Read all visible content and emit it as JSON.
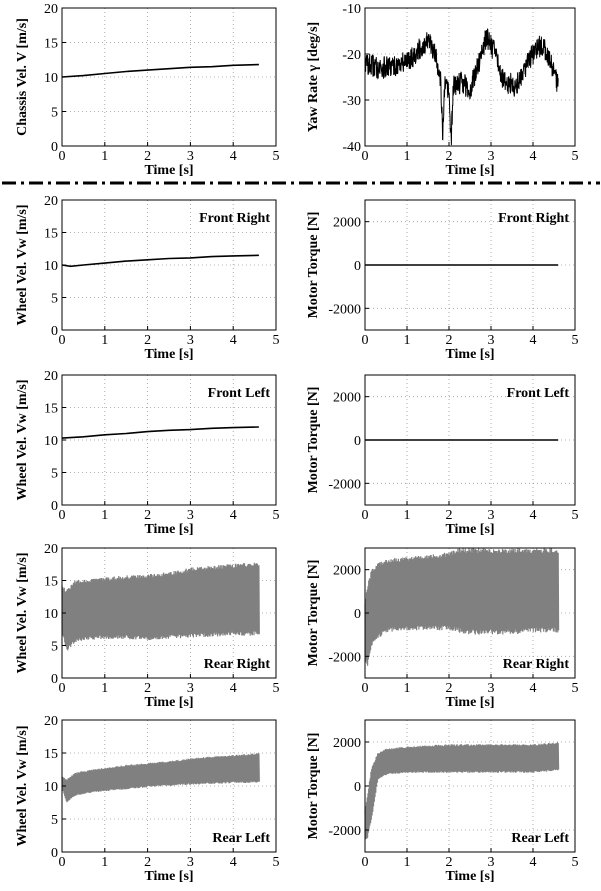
{
  "chart_data": [
    {
      "id": "chassis-velocity",
      "type": "line",
      "ylabel": "Chassis Vel. V [m/s]",
      "xlabel": "Time [s]",
      "xlim": [
        0,
        5
      ],
      "ylim": [
        0,
        20
      ],
      "xticks": [
        "0",
        "1",
        "2",
        "3",
        "4",
        "5"
      ],
      "yticks": [
        "0",
        "5",
        "10",
        "15",
        "20"
      ],
      "grid": true,
      "annotation": "",
      "series": [
        {
          "color": "#000000",
          "style": "line",
          "x": [
            0,
            0.5,
            1,
            1.5,
            2,
            2.5,
            3,
            3.5,
            4,
            4.6
          ],
          "y": [
            10.0,
            10.2,
            10.5,
            10.8,
            11.0,
            11.2,
            11.4,
            11.5,
            11.7,
            11.8
          ]
        }
      ]
    },
    {
      "id": "yaw-rate",
      "type": "line",
      "ylabel": "Yaw Rate γ [deg/s]",
      "xlabel": "Time [s]",
      "xlim": [
        0,
        5
      ],
      "ylim": [
        -40,
        -10
      ],
      "xticks": [
        "0",
        "1",
        "2",
        "3",
        "4",
        "5"
      ],
      "yticks": [
        "-40",
        "-30",
        "-20",
        "-10"
      ],
      "grid": true,
      "annotation": "",
      "series": [
        {
          "color": "#000000",
          "style": "noisy",
          "x": [
            0,
            0.3,
            0.6,
            0.9,
            1.2,
            1.5,
            1.7,
            1.8,
            1.85,
            1.9,
            2.0,
            2.05,
            2.1,
            2.3,
            2.5,
            2.7,
            2.9,
            3.1,
            3.3,
            3.6,
            3.9,
            4.2,
            4.4,
            4.6
          ],
          "y": [
            -22,
            -23,
            -23,
            -22,
            -20,
            -17,
            -21,
            -25,
            -38,
            -27,
            -28,
            -40,
            -27,
            -26,
            -28,
            -22,
            -16,
            -20,
            -26,
            -27,
            -21,
            -18,
            -21,
            -27
          ],
          "band": 2.5
        }
      ]
    },
    {
      "id": "wheel-velocity-front-right",
      "type": "line",
      "ylabel": "Wheel Vel. Vw [m/s]",
      "xlabel": "Time [s]",
      "xlim": [
        0,
        5
      ],
      "ylim": [
        0,
        20
      ],
      "xticks": [
        "0",
        "1",
        "2",
        "3",
        "4",
        "5"
      ],
      "yticks": [
        "0",
        "5",
        "10",
        "15",
        "20"
      ],
      "grid": true,
      "annotation": "Front Right",
      "series": [
        {
          "color": "#000000",
          "style": "line",
          "x": [
            0,
            0.2,
            0.5,
            1,
            1.5,
            2,
            2.5,
            3,
            3.5,
            4,
            4.6
          ],
          "y": [
            10.0,
            9.8,
            10.0,
            10.3,
            10.6,
            10.8,
            11.0,
            11.1,
            11.3,
            11.4,
            11.5
          ]
        }
      ]
    },
    {
      "id": "motor-torque-front-right",
      "type": "line",
      "ylabel": "Motor Torque [N]",
      "xlabel": "Time [s]",
      "xlim": [
        0,
        5
      ],
      "ylim": [
        -3000,
        3000
      ],
      "xticks": [
        "0",
        "1",
        "2",
        "3",
        "4",
        "5"
      ],
      "yticks": [
        "-2000",
        "0",
        "2000"
      ],
      "grid": true,
      "annotation": "Front Right",
      "series": [
        {
          "color": "#000000",
          "style": "line",
          "x": [
            0,
            4.6
          ],
          "y": [
            0,
            0
          ]
        }
      ]
    },
    {
      "id": "wheel-velocity-front-left",
      "type": "line",
      "ylabel": "Wheel Vel. Vw [m/s]",
      "xlabel": "Time [s]",
      "xlim": [
        0,
        5
      ],
      "ylim": [
        0,
        20
      ],
      "xticks": [
        "0",
        "1",
        "2",
        "3",
        "4",
        "5"
      ],
      "yticks": [
        "0",
        "5",
        "10",
        "15",
        "20"
      ],
      "grid": true,
      "annotation": "Front Left",
      "series": [
        {
          "color": "#000000",
          "style": "line",
          "x": [
            0,
            0.5,
            1,
            1.5,
            2,
            2.5,
            3,
            3.5,
            4,
            4.6
          ],
          "y": [
            10.3,
            10.5,
            10.8,
            11.0,
            11.3,
            11.5,
            11.6,
            11.8,
            11.9,
            12.0
          ]
        }
      ]
    },
    {
      "id": "motor-torque-front-left",
      "type": "line",
      "ylabel": "Motor Torque [N]",
      "xlabel": "Time [s]",
      "xlim": [
        0,
        5
      ],
      "ylim": [
        -3000,
        3000
      ],
      "xticks": [
        "0",
        "1",
        "2",
        "3",
        "4",
        "5"
      ],
      "yticks": [
        "-2000",
        "0",
        "2000"
      ],
      "grid": true,
      "annotation": "Front Left",
      "series": [
        {
          "color": "#000000",
          "style": "line",
          "x": [
            0,
            4.6
          ],
          "y": [
            0,
            0
          ]
        }
      ]
    },
    {
      "id": "wheel-velocity-rear-right",
      "type": "area",
      "ylabel": "Wheel Vel. Vw [m/s]",
      "xlabel": "Time [s]",
      "xlim": [
        0,
        5
      ],
      "ylim": [
        0,
        20
      ],
      "xticks": [
        "0",
        "1",
        "2",
        "3",
        "4",
        "5"
      ],
      "yticks": [
        "0",
        "5",
        "10",
        "15",
        "20"
      ],
      "grid": true,
      "annotation": "Rear Right",
      "series": [
        {
          "color": "#808080",
          "style": "band",
          "x": [
            0,
            0.1,
            0.3,
            0.5,
            1,
            1.5,
            2,
            2.5,
            3,
            3.5,
            4,
            4.6
          ],
          "upper": [
            14.5,
            13.5,
            15.0,
            15.2,
            15.5,
            15.8,
            16.0,
            16.3,
            17.0,
            17.3,
            17.6,
            17.8
          ],
          "lower": [
            7.0,
            4.0,
            5.5,
            5.8,
            6.0,
            6.0,
            5.8,
            6.0,
            6.2,
            6.3,
            6.5,
            6.5
          ]
        }
      ]
    },
    {
      "id": "motor-torque-rear-right",
      "type": "area",
      "ylabel": "Motor Torque [N]",
      "xlabel": "Time [s]",
      "xlim": [
        0,
        5
      ],
      "ylim": [
        -3000,
        3000
      ],
      "xticks": [
        "0",
        "1",
        "2",
        "3",
        "4",
        "5"
      ],
      "yticks": [
        "-2000",
        "0",
        "2000"
      ],
      "grid": true,
      "annotation": "Rear Right",
      "series": [
        {
          "color": "#808080",
          "style": "band",
          "x": [
            0,
            0.05,
            0.15,
            0.3,
            0.5,
            1,
            1.5,
            2,
            2.2,
            2.5,
            3,
            3.5,
            4,
            4.6
          ],
          "upper": [
            500,
            1200,
            2000,
            2300,
            2500,
            2600,
            2700,
            2800,
            3000,
            3000,
            3000,
            3000,
            3000,
            3000
          ],
          "lower": [
            -2300,
            -2500,
            -1500,
            -1200,
            -900,
            -800,
            -800,
            -800,
            -900,
            -1000,
            -1000,
            -1000,
            -900,
            -900
          ]
        }
      ]
    },
    {
      "id": "wheel-velocity-rear-left",
      "type": "area",
      "ylabel": "Wheel Vel. Vw [m/s]",
      "xlabel": "Time [s]",
      "xlim": [
        0,
        5
      ],
      "ylim": [
        0,
        20
      ],
      "xticks": [
        "0",
        "1",
        "2",
        "3",
        "4",
        "5"
      ],
      "yticks": [
        "0",
        "5",
        "10",
        "15",
        "20"
      ],
      "grid": true,
      "annotation": "Rear Left",
      "series": [
        {
          "color": "#808080",
          "style": "band",
          "x": [
            0,
            0.1,
            0.3,
            0.5,
            1,
            1.5,
            2,
            2.5,
            3,
            3.5,
            4,
            4.6
          ],
          "upper": [
            11.5,
            11.0,
            12.0,
            12.3,
            12.8,
            13.2,
            13.5,
            13.8,
            14.2,
            14.5,
            14.7,
            15.0
          ],
          "lower": [
            9.5,
            7.5,
            8.5,
            8.8,
            9.2,
            9.5,
            9.8,
            10.0,
            10.2,
            10.3,
            10.4,
            10.5
          ]
        }
      ]
    },
    {
      "id": "motor-torque-rear-left",
      "type": "area",
      "ylabel": "Motor Torque [N]",
      "xlabel": "Time [s]",
      "xlim": [
        0,
        5
      ],
      "ylim": [
        -3000,
        3000
      ],
      "xticks": [
        "0",
        "1",
        "2",
        "3",
        "4",
        "5"
      ],
      "yticks": [
        "-2000",
        "0",
        "2000"
      ],
      "grid": true,
      "annotation": "Rear Left",
      "series": [
        {
          "color": "#808080",
          "style": "band",
          "x": [
            0,
            0.05,
            0.15,
            0.3,
            0.5,
            1,
            2,
            3,
            4,
            4.6
          ],
          "upper": [
            -1000,
            -500,
            800,
            1500,
            1700,
            1800,
            1900,
            1900,
            1900,
            2000
          ],
          "lower": [
            -2500,
            -2400,
            -1500,
            300,
            500,
            600,
            600,
            600,
            600,
            700
          ]
        }
      ]
    }
  ]
}
